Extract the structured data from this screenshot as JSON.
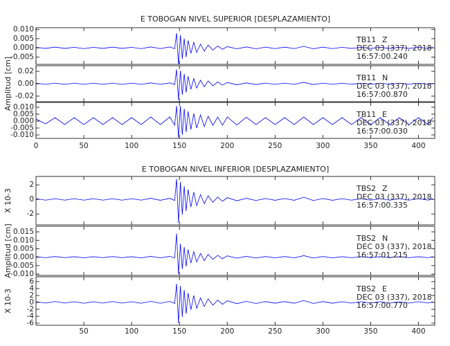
{
  "chart_data": [
    {
      "type": "line",
      "title": "E TOBOGAN NIVEL SUPERIOR [DESPLAZAMIENTO]",
      "xlim": [
        0,
        417
      ],
      "xticks": [
        0,
        50,
        100,
        150,
        200,
        250,
        300,
        350,
        400
      ],
      "x": [
        0,
        10,
        20,
        30,
        40,
        50,
        60,
        70,
        80,
        90,
        100,
        110,
        120,
        130,
        140,
        145,
        147,
        149,
        151,
        153,
        155,
        157,
        159,
        162,
        165,
        168,
        172,
        176,
        180,
        185,
        190,
        195,
        200,
        210,
        220,
        230,
        240,
        250,
        260,
        270,
        280,
        290,
        300,
        310,
        320,
        330,
        340,
        350,
        360,
        370,
        380,
        390,
        400,
        410,
        415
      ],
      "panels": [
        {
          "station": "TB11",
          "component": "Z",
          "date": "DEC 03 (337), 2018",
          "time": "16:57:00.240",
          "color": "#0000ff",
          "ylim": [
            -0.009,
            0.011
          ],
          "yticks": [
            {
              "value": 0.01,
              "label": "0.010"
            },
            {
              "value": 0.005,
              "label": "0.005"
            },
            {
              "value": 0,
              "label": "0.000"
            },
            {
              "value": -0.005,
              "label": "-0.005"
            }
          ],
          "values": [
            0.0003,
            -0.0003,
            0.0004,
            -0.0003,
            0.0003,
            -0.0004,
            0.0003,
            -0.0003,
            0.0004,
            -0.0003,
            0.0003,
            -0.0004,
            0.0005,
            -0.0004,
            0.0005,
            -0.0005,
            0.008,
            -0.009,
            0.007,
            -0.006,
            0.005,
            -0.005,
            0.004,
            -0.003,
            0.003,
            -0.0025,
            0.002,
            -0.0018,
            0.0015,
            -0.0012,
            0.001,
            -0.0008,
            0.0007,
            -0.0005,
            0.0005,
            -0.0005,
            0.0004,
            -0.0004,
            0.0004,
            -0.0004,
            0.0008,
            -0.0005,
            0.0004,
            -0.0004,
            0.0003,
            -0.0003,
            0.0003,
            -0.0003,
            0.0003,
            -0.0003,
            0.0003,
            -0.0003,
            0.0003,
            -0.0003,
            0.0003
          ]
        },
        {
          "station": "TB11",
          "component": "N",
          "date": "DEC 03 (337), 2018",
          "time": "16:57:00.870",
          "color": "#0000ff",
          "y_label": "Amplitud [cm]",
          "ylim": [
            -0.029,
            0.029
          ],
          "yticks": [
            {
              "value": 0.02,
              "label": "0.02"
            },
            {
              "value": 0,
              "label": "0.00"
            },
            {
              "value": -0.02,
              "label": "-0.02"
            }
          ],
          "values": [
            0.001,
            -0.001,
            0.001,
            -0.001,
            0.001,
            -0.001,
            0.001,
            -0.001,
            0.001,
            -0.001,
            0.001,
            -0.001,
            0.0013,
            -0.001,
            0.0013,
            -0.0013,
            0.023,
            -0.026,
            0.021,
            -0.018,
            0.016,
            -0.014,
            0.012,
            -0.009,
            0.0085,
            -0.007,
            0.0057,
            -0.005,
            0.0044,
            -0.0034,
            0.0029,
            -0.0023,
            0.002,
            -0.0016,
            0.0013,
            -0.0013,
            0.001,
            -0.001,
            0.001,
            -0.001,
            0.0023,
            -0.0013,
            0.001,
            -0.001,
            0.0008,
            -0.0008,
            0.0008,
            -0.0008,
            0.0008,
            -0.0008,
            0.0008,
            -0.0008,
            0.0008,
            -0.0008,
            0.0008
          ]
        },
        {
          "station": "TB11",
          "component": "E",
          "date": "DEC 03 (337), 2018",
          "time": "16:57:00.030",
          "color": "#0000ff",
          "ylim": [
            -0.0125,
            0.0135
          ],
          "yticks": [
            {
              "value": 0.01,
              "label": "0.010"
            },
            {
              "value": 0.005,
              "label": "0.005"
            },
            {
              "value": 0,
              "label": "0.000"
            },
            {
              "value": -0.005,
              "label": "-0.005"
            },
            {
              "value": -0.01,
              "label": "-0.010"
            }
          ],
          "values": [
            0.0015,
            -0.002,
            0.0025,
            -0.0025,
            0.0025,
            -0.0025,
            0.0025,
            -0.0025,
            0.0025,
            -0.0025,
            0.0025,
            -0.0025,
            0.003,
            -0.0025,
            0.003,
            -0.003,
            0.011,
            -0.012,
            0.011,
            -0.01,
            0.009,
            -0.008,
            0.007,
            -0.006,
            0.0055,
            -0.005,
            0.0045,
            -0.004,
            0.0035,
            -0.003,
            0.003,
            -0.003,
            0.003,
            -0.0028,
            0.0028,
            -0.0025,
            0.0025,
            -0.0025,
            0.0025,
            -0.0025,
            0.003,
            -0.0025,
            0.0025,
            -0.0025,
            0.0025,
            -0.0025,
            0.0025,
            -0.0025,
            0.0025,
            -0.0025,
            0.0025,
            -0.0025,
            0.0025,
            -0.0025,
            0.0025
          ]
        }
      ]
    },
    {
      "type": "line",
      "title": "E TOBOGAN NIVEL INFERIOR [DESPLAZAMIENTO]",
      "xlim": [
        0,
        417
      ],
      "xticks": [
        50,
        100,
        150,
        200,
        250,
        300,
        350,
        400
      ],
      "x": [
        0,
        10,
        20,
        30,
        40,
        50,
        60,
        70,
        80,
        90,
        100,
        110,
        120,
        130,
        140,
        145,
        147,
        149,
        151,
        153,
        155,
        157,
        159,
        162,
        165,
        168,
        172,
        176,
        180,
        185,
        190,
        195,
        200,
        210,
        220,
        230,
        240,
        250,
        260,
        270,
        280,
        290,
        300,
        310,
        320,
        330,
        340,
        350,
        360,
        370,
        380,
        390,
        400,
        410,
        415
      ],
      "panels": [
        {
          "station": "TBS2",
          "component": "Z",
          "date": "DEC 03 (337), 2018",
          "time": "16:57:00.335",
          "color": "#0000ff",
          "y_label": "X 10-3",
          "ylim": [
            -3.5,
            3.15
          ],
          "yticks": [
            2,
            0,
            -2
          ],
          "values": [
            0.1,
            -0.1,
            0.1,
            -0.1,
            0.1,
            -0.1,
            0.1,
            -0.1,
            0.1,
            -0.1,
            0.1,
            -0.1,
            0.15,
            -0.12,
            0.15,
            -0.15,
            2.8,
            -3.2,
            2.4,
            -2.1,
            1.8,
            -1.6,
            1.35,
            -1.05,
            1.0,
            -0.85,
            0.66,
            -0.6,
            0.5,
            -0.4,
            0.33,
            -0.27,
            0.24,
            -0.18,
            0.15,
            -0.15,
            0.12,
            -0.12,
            0.12,
            -0.12,
            0.3,
            -0.15,
            0.12,
            -0.12,
            0.1,
            -0.1,
            0.1,
            -0.1,
            0.1,
            -0.1,
            0.1,
            -0.1,
            0.1,
            -0.1,
            0.1
          ]
        },
        {
          "station": "TBS2",
          "component": "N",
          "date": "DEC 03 (337), 2018",
          "time": "16:57:01.215",
          "color": "#0000ff",
          "y_label": "Amplitud [cm]",
          "ylim": [
            -0.0108,
            0.0183
          ],
          "yticks": [
            {
              "value": 0.015,
              "label": "0.015"
            },
            {
              "value": 0.01,
              "label": "0.010"
            },
            {
              "value": 0.005,
              "label": "0.005"
            },
            {
              "value": 0,
              "label": "0.000"
            },
            {
              "value": -0.005,
              "label": "-0.005"
            },
            {
              "value": -0.01,
              "label": "-0.010"
            }
          ],
          "values": [
            0.0003,
            -0.0003,
            0.0004,
            -0.0003,
            0.0003,
            -0.0004,
            0.0003,
            -0.0003,
            0.0004,
            -0.0003,
            0.0003,
            -0.0004,
            0.0005,
            -0.0004,
            0.0005,
            -0.0005,
            0.014,
            -0.01,
            0.008,
            -0.007,
            0.006,
            -0.0055,
            0.0045,
            -0.0035,
            0.0033,
            -0.0028,
            0.0022,
            -0.002,
            0.0017,
            -0.0013,
            0.0011,
            -0.0009,
            0.0008,
            -0.0006,
            0.0005,
            -0.0005,
            0.0004,
            -0.0004,
            0.0004,
            -0.0004,
            0.0009,
            -0.0005,
            0.0004,
            -0.0004,
            0.0003,
            -0.0003,
            0.0003,
            -0.0003,
            0.0003,
            -0.0003,
            0.0003,
            -0.0003,
            0.0003,
            -0.0003,
            0.0003
          ]
        },
        {
          "station": "TBS2",
          "component": "E",
          "date": "DEC 03 (337), 2018",
          "time": "16:57:00.770",
          "color": "#0000ff",
          "y_label": "X 10-3",
          "ylim": [
            -6.6,
            7.4
          ],
          "yticks": [
            6,
            4,
            2,
            0,
            -2,
            -4,
            -6
          ],
          "values": [
            0.2,
            -0.2,
            0.25,
            -0.2,
            0.2,
            -0.25,
            0.2,
            -0.2,
            0.25,
            -0.2,
            0.2,
            -0.25,
            0.3,
            -0.25,
            0.3,
            -0.3,
            5.4,
            -6,
            4.8,
            -4.2,
            3.6,
            -3.3,
            2.7,
            -2.1,
            2,
            -1.7,
            1.3,
            -1.2,
            1,
            -0.8,
            0.66,
            -0.54,
            0.48,
            -0.36,
            0.3,
            -0.3,
            0.24,
            -0.24,
            0.24,
            -0.24,
            0.54,
            -0.3,
            0.24,
            -0.24,
            0.2,
            -0.2,
            0.2,
            -0.2,
            0.2,
            -0.2,
            0.2,
            -0.2,
            0.2,
            -0.2,
            0.2
          ]
        }
      ]
    }
  ]
}
